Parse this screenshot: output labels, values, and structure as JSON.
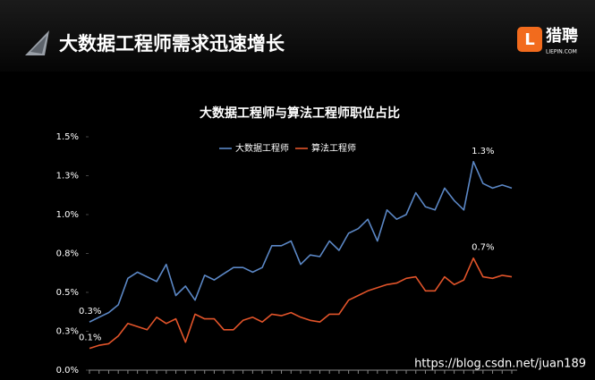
{
  "header": {
    "title": "大数据工程师需求迅速增长",
    "logo_text": "猎聘",
    "logo_sub": "LIEPIN.COM",
    "logo_letter": "L"
  },
  "watermark": "https://blog.csdn.net/juan189",
  "chart_data": {
    "type": "line",
    "title": "大数据工程师与算法工程师职位占比",
    "ylim": [
      0,
      1.5
    ],
    "yticks": [
      {
        "value": 0,
        "label": "0.0%"
      },
      {
        "value": 0.25,
        "label": "0.3%"
      },
      {
        "value": 0.5,
        "label": "0.5%"
      },
      {
        "value": 0.75,
        "label": "0.8%"
      },
      {
        "value": 1.0,
        "label": "1.0%"
      },
      {
        "value": 1.25,
        "label": "1.3%"
      },
      {
        "value": 1.5,
        "label": "1.5%"
      }
    ],
    "grid": false,
    "series": [
      {
        "name": "大数据工程师",
        "color": "#5b87c5",
        "values": [
          0.31,
          0.34,
          0.37,
          0.42,
          0.59,
          0.63,
          0.6,
          0.57,
          0.68,
          0.48,
          0.54,
          0.45,
          0.61,
          0.58,
          0.62,
          0.66,
          0.66,
          0.63,
          0.66,
          0.8,
          0.8,
          0.83,
          0.68,
          0.74,
          0.73,
          0.83,
          0.77,
          0.88,
          0.91,
          0.97,
          0.83,
          1.03,
          0.97,
          1.0,
          1.14,
          1.05,
          1.03,
          1.17,
          1.09,
          1.03,
          1.34,
          1.2,
          1.17,
          1.19,
          1.17
        ],
        "value_labels": [
          "0.3%",
          null,
          null,
          null,
          null,
          null,
          null,
          null,
          null,
          null,
          null,
          null,
          null,
          null,
          null,
          null,
          null,
          null,
          null,
          null,
          null,
          null,
          null,
          null,
          null,
          null,
          null,
          null,
          null,
          null,
          null,
          null,
          null,
          null,
          null,
          null,
          null,
          null,
          null,
          null,
          "1.3%",
          null,
          null,
          null,
          null
        ]
      },
      {
        "name": "算法工程师",
        "color": "#e2542a",
        "values": [
          0.14,
          0.16,
          0.17,
          0.22,
          0.3,
          0.28,
          0.26,
          0.34,
          0.3,
          0.33,
          0.18,
          0.36,
          0.33,
          0.33,
          0.26,
          0.26,
          0.32,
          0.34,
          0.31,
          0.36,
          0.35,
          0.37,
          0.34,
          0.32,
          0.31,
          0.36,
          0.36,
          0.45,
          0.48,
          0.51,
          0.53,
          0.55,
          0.56,
          0.59,
          0.6,
          0.51,
          0.51,
          0.6,
          0.55,
          0.58,
          0.72,
          0.6,
          0.59,
          0.61,
          0.6
        ],
        "value_labels": [
          "0.1%",
          null,
          null,
          null,
          null,
          null,
          null,
          null,
          null,
          null,
          null,
          null,
          null,
          null,
          null,
          null,
          null,
          null,
          null,
          null,
          null,
          null,
          null,
          null,
          null,
          null,
          null,
          null,
          null,
          null,
          null,
          null,
          null,
          null,
          null,
          null,
          null,
          null,
          null,
          null,
          "0.7%",
          null,
          null,
          null,
          null
        ]
      }
    ]
  }
}
